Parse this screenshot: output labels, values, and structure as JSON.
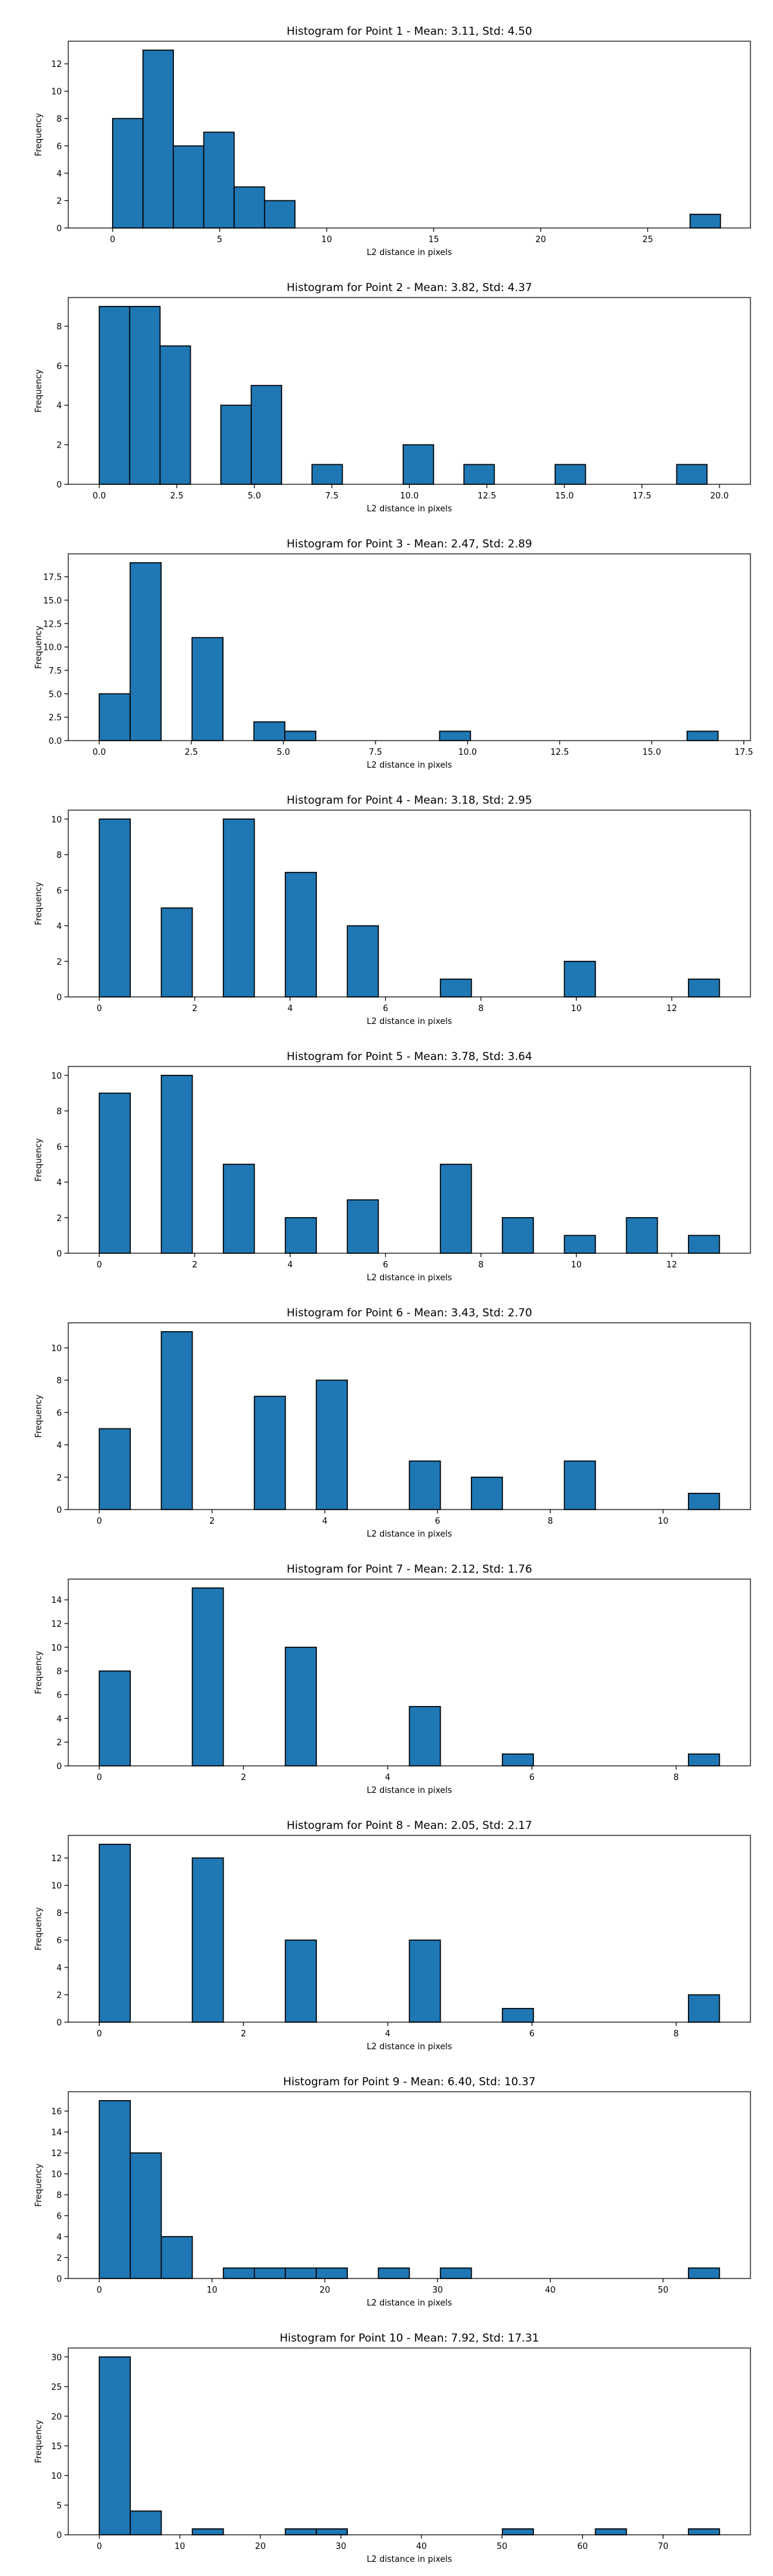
{
  "chart_data": [
    {
      "type": "bar",
      "title": "Histogram for Point 1 - Mean: 3.11, Std: 4.50",
      "xlabel": "L2 distance in pixels",
      "ylabel": "Frequency",
      "xlim": [
        -2.07,
        29.8
      ],
      "ylim": [
        0,
        13.65
      ],
      "xticks": [
        0,
        5,
        10,
        15,
        20,
        25
      ],
      "yticks": [
        0,
        2,
        4,
        6,
        8,
        10,
        12
      ],
      "grid": false,
      "bins": [
        {
          "x0": 0.0,
          "x1": 1.42,
          "count": 8
        },
        {
          "x0": 1.42,
          "x1": 2.84,
          "count": 13
        },
        {
          "x0": 2.84,
          "x1": 4.26,
          "count": 6
        },
        {
          "x0": 4.26,
          "x1": 5.68,
          "count": 7
        },
        {
          "x0": 5.68,
          "x1": 7.1,
          "count": 3
        },
        {
          "x0": 7.1,
          "x1": 8.52,
          "count": 2
        },
        {
          "x0": 26.98,
          "x1": 28.4,
          "count": 1
        }
      ]
    },
    {
      "type": "bar",
      "title": "Histogram for Point 2 - Mean: 3.82, Std: 4.37",
      "xlabel": "L2 distance in pixels",
      "ylabel": "Frequency",
      "xlim": [
        -1.0,
        21.0
      ],
      "ylim": [
        0,
        9.45
      ],
      "xticks": [
        0.0,
        2.5,
        5.0,
        7.5,
        10.0,
        12.5,
        15.0,
        17.5,
        20.0
      ],
      "xtick_labels": [
        "0.0",
        "2.5",
        "5.0",
        "7.5",
        "10.0",
        "12.5",
        "15.0",
        "17.5",
        "20.0"
      ],
      "yticks": [
        0,
        2,
        4,
        6,
        8
      ],
      "grid": false,
      "bins": [
        {
          "x0": 0.0,
          "x1": 0.98,
          "count": 9
        },
        {
          "x0": 0.98,
          "x1": 1.96,
          "count": 9
        },
        {
          "x0": 1.96,
          "x1": 2.94,
          "count": 7
        },
        {
          "x0": 3.92,
          "x1": 4.9,
          "count": 4
        },
        {
          "x0": 4.9,
          "x1": 5.88,
          "count": 5
        },
        {
          "x0": 6.86,
          "x1": 7.84,
          "count": 1
        },
        {
          "x0": 9.8,
          "x1": 10.78,
          "count": 2
        },
        {
          "x0": 11.76,
          "x1": 12.74,
          "count": 1
        },
        {
          "x0": 14.7,
          "x1": 15.68,
          "count": 1
        },
        {
          "x0": 18.62,
          "x1": 19.6,
          "count": 1
        }
      ]
    },
    {
      "type": "bar",
      "title": "Histogram for Point 3 - Mean: 2.47, Std: 2.89",
      "xlabel": "L2 distance in pixels",
      "ylabel": "Frequency",
      "xlim": [
        -0.84,
        17.68
      ],
      "ylim": [
        0,
        19.95
      ],
      "xticks": [
        0.0,
        2.5,
        5.0,
        7.5,
        10.0,
        12.5,
        15.0,
        17.5
      ],
      "xtick_labels": [
        "0.0",
        "2.5",
        "5.0",
        "7.5",
        "10.0",
        "12.5",
        "15.0",
        "17.5"
      ],
      "yticks": [
        0.0,
        2.5,
        5.0,
        7.5,
        10.0,
        12.5,
        15.0,
        17.5
      ],
      "ytick_labels": [
        "0.0",
        "2.5",
        "5.0",
        "7.5",
        "10.0",
        "12.5",
        "15.0",
        "17.5"
      ],
      "grid": false,
      "bins": [
        {
          "x0": 0.0,
          "x1": 0.84,
          "count": 5
        },
        {
          "x0": 0.84,
          "x1": 1.68,
          "count": 19
        },
        {
          "x0": 2.52,
          "x1": 3.36,
          "count": 11
        },
        {
          "x0": 4.2,
          "x1": 5.04,
          "count": 2
        },
        {
          "x0": 5.04,
          "x1": 5.88,
          "count": 1
        },
        {
          "x0": 9.24,
          "x1": 10.08,
          "count": 1
        },
        {
          "x0": 15.96,
          "x1": 16.8,
          "count": 1
        }
      ]
    },
    {
      "type": "bar",
      "title": "Histogram for Point 4 - Mean: 3.18, Std: 2.95",
      "xlabel": "L2 distance in pixels",
      "ylabel": "Frequency",
      "xlim": [
        -0.65,
        13.65
      ],
      "ylim": [
        0,
        10.5
      ],
      "xticks": [
        0,
        2,
        4,
        6,
        8,
        10,
        12
      ],
      "yticks": [
        0,
        2,
        4,
        6,
        8,
        10
      ],
      "grid": false,
      "bins": [
        {
          "x0": 0.0,
          "x1": 0.65,
          "count": 10
        },
        {
          "x0": 1.3,
          "x1": 1.95,
          "count": 5
        },
        {
          "x0": 2.6,
          "x1": 3.25,
          "count": 10
        },
        {
          "x0": 3.9,
          "x1": 4.55,
          "count": 7
        },
        {
          "x0": 5.2,
          "x1": 5.85,
          "count": 4
        },
        {
          "x0": 7.15,
          "x1": 7.8,
          "count": 1
        },
        {
          "x0": 9.75,
          "x1": 10.4,
          "count": 2
        },
        {
          "x0": 12.35,
          "x1": 13.0,
          "count": 1
        }
      ]
    },
    {
      "type": "bar",
      "title": "Histogram for Point 5 - Mean: 3.78, Std: 3.64",
      "xlabel": "L2 distance in pixels",
      "ylabel": "Frequency",
      "xlim": [
        -0.65,
        13.65
      ],
      "ylim": [
        0,
        10.5
      ],
      "xticks": [
        0,
        2,
        4,
        6,
        8,
        10,
        12
      ],
      "yticks": [
        0,
        2,
        4,
        6,
        8,
        10
      ],
      "grid": false,
      "bins": [
        {
          "x0": 0.0,
          "x1": 0.65,
          "count": 9
        },
        {
          "x0": 1.3,
          "x1": 1.95,
          "count": 10
        },
        {
          "x0": 2.6,
          "x1": 3.25,
          "count": 5
        },
        {
          "x0": 3.9,
          "x1": 4.55,
          "count": 2
        },
        {
          "x0": 5.2,
          "x1": 5.85,
          "count": 3
        },
        {
          "x0": 7.15,
          "x1": 7.8,
          "count": 5
        },
        {
          "x0": 8.45,
          "x1": 9.1,
          "count": 2
        },
        {
          "x0": 9.75,
          "x1": 10.4,
          "count": 1
        },
        {
          "x0": 11.05,
          "x1": 11.7,
          "count": 2
        },
        {
          "x0": 12.35,
          "x1": 13.0,
          "count": 1
        }
      ]
    },
    {
      "type": "bar",
      "title": "Histogram for Point 6 - Mean: 3.43, Std: 2.70",
      "xlabel": "L2 distance in pixels",
      "ylabel": "Frequency",
      "xlim": [
        -0.55,
        11.55
      ],
      "ylim": [
        0,
        11.55
      ],
      "xticks": [
        0,
        2,
        4,
        6,
        8,
        10
      ],
      "yticks": [
        0,
        2,
        4,
        6,
        8,
        10
      ],
      "grid": false,
      "bins": [
        {
          "x0": 0.0,
          "x1": 0.55,
          "count": 5
        },
        {
          "x0": 1.1,
          "x1": 1.65,
          "count": 11
        },
        {
          "x0": 2.75,
          "x1": 3.3,
          "count": 7
        },
        {
          "x0": 3.85,
          "x1": 4.4,
          "count": 8
        },
        {
          "x0": 5.5,
          "x1": 6.05,
          "count": 3
        },
        {
          "x0": 6.6,
          "x1": 7.15,
          "count": 2
        },
        {
          "x0": 8.25,
          "x1": 8.8,
          "count": 3
        },
        {
          "x0": 10.45,
          "x1": 11.0,
          "count": 1
        }
      ]
    },
    {
      "type": "bar",
      "title": "Histogram for Point 7 - Mean: 2.12, Std: 1.76",
      "xlabel": "L2 distance in pixels",
      "ylabel": "Frequency",
      "xlim": [
        -0.43,
        9.03
      ],
      "ylim": [
        0,
        15.75
      ],
      "xticks": [
        0,
        2,
        4,
        6,
        8
      ],
      "yticks": [
        0,
        2,
        4,
        6,
        8,
        10,
        12,
        14
      ],
      "grid": false,
      "bins": [
        {
          "x0": 0.0,
          "x1": 0.43,
          "count": 8
        },
        {
          "x0": 1.29,
          "x1": 1.72,
          "count": 15
        },
        {
          "x0": 2.58,
          "x1": 3.01,
          "count": 10
        },
        {
          "x0": 4.3,
          "x1": 4.73,
          "count": 5
        },
        {
          "x0": 5.59,
          "x1": 6.02,
          "count": 1
        },
        {
          "x0": 8.17,
          "x1": 8.6,
          "count": 1
        }
      ]
    },
    {
      "type": "bar",
      "title": "Histogram for Point 8 - Mean: 2.05, Std: 2.17",
      "xlabel": "L2 distance in pixels",
      "ylabel": "Frequency",
      "xlim": [
        -0.43,
        9.03
      ],
      "ylim": [
        0,
        13.65
      ],
      "xticks": [
        0,
        2,
        4,
        6,
        8
      ],
      "yticks": [
        0,
        2,
        4,
        6,
        8,
        10,
        12
      ],
      "grid": false,
      "bins": [
        {
          "x0": 0.0,
          "x1": 0.43,
          "count": 13
        },
        {
          "x0": 1.29,
          "x1": 1.72,
          "count": 12
        },
        {
          "x0": 2.58,
          "x1": 3.01,
          "count": 6
        },
        {
          "x0": 4.3,
          "x1": 4.73,
          "count": 6
        },
        {
          "x0": 5.59,
          "x1": 6.02,
          "count": 1
        },
        {
          "x0": 8.17,
          "x1": 8.6,
          "count": 2
        }
      ]
    },
    {
      "type": "bar",
      "title": "Histogram for Point 9 - Mean: 6.40, Std: 10.37",
      "xlabel": "L2 distance in pixels",
      "ylabel": "Frequency",
      "xlim": [
        -2.75,
        57.75
      ],
      "ylim": [
        0,
        17.85
      ],
      "xticks": [
        0,
        10,
        20,
        30,
        40,
        50
      ],
      "yticks": [
        0,
        2,
        4,
        6,
        8,
        10,
        12,
        14,
        16
      ],
      "grid": false,
      "bins": [
        {
          "x0": 0.0,
          "x1": 2.75,
          "count": 17
        },
        {
          "x0": 2.75,
          "x1": 5.5,
          "count": 12
        },
        {
          "x0": 5.5,
          "x1": 8.25,
          "count": 4
        },
        {
          "x0": 11.0,
          "x1": 13.75,
          "count": 1
        },
        {
          "x0": 13.75,
          "x1": 16.5,
          "count": 1
        },
        {
          "x0": 16.5,
          "x1": 19.25,
          "count": 1
        },
        {
          "x0": 19.25,
          "x1": 22.0,
          "count": 1
        },
        {
          "x0": 24.75,
          "x1": 27.5,
          "count": 1
        },
        {
          "x0": 30.25,
          "x1": 33.0,
          "count": 1
        },
        {
          "x0": 52.25,
          "x1": 55.0,
          "count": 1
        }
      ]
    },
    {
      "type": "bar",
      "title": "Histogram for Point 10 - Mean: 7.92, Std: 17.31",
      "xlabel": "L2 distance in pixels",
      "ylabel": "Frequency",
      "xlim": [
        -3.85,
        80.85
      ],
      "ylim": [
        0,
        31.5
      ],
      "xticks": [
        0,
        10,
        20,
        30,
        40,
        50,
        60,
        70
      ],
      "yticks": [
        0,
        5,
        10,
        15,
        20,
        25,
        30
      ],
      "grid": false,
      "bins": [
        {
          "x0": 0.0,
          "x1": 3.85,
          "count": 30
        },
        {
          "x0": 3.85,
          "x1": 7.7,
          "count": 4
        },
        {
          "x0": 11.55,
          "x1": 15.4,
          "count": 1
        },
        {
          "x0": 23.1,
          "x1": 26.95,
          "count": 1
        },
        {
          "x0": 26.95,
          "x1": 30.8,
          "count": 1
        },
        {
          "x0": 50.05,
          "x1": 53.9,
          "count": 1
        },
        {
          "x0": 61.6,
          "x1": 65.45,
          "count": 1
        },
        {
          "x0": 73.15,
          "x1": 77.0,
          "count": 1
        }
      ]
    }
  ],
  "colors": {
    "bar_fill": "#1f77b4",
    "bar_edge": "#000000",
    "axis": "#000000",
    "background": "#ffffff"
  }
}
